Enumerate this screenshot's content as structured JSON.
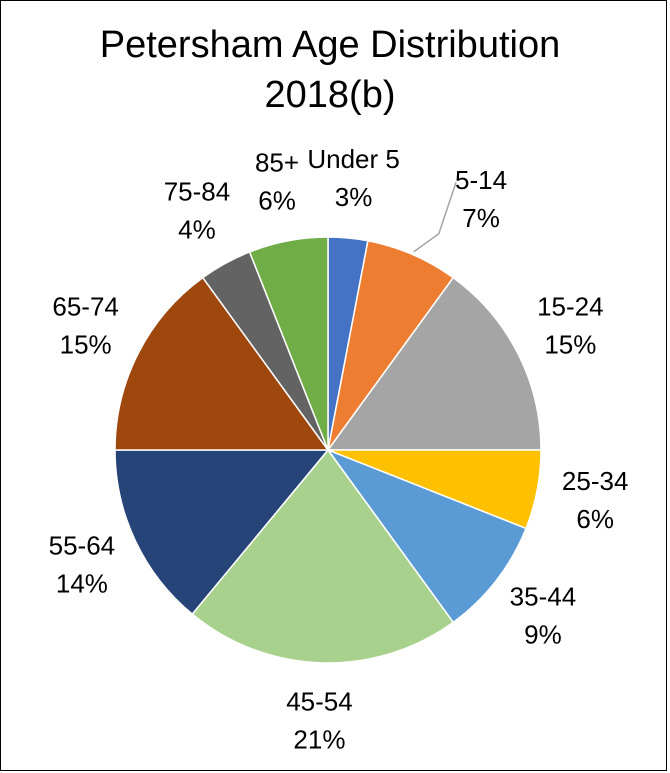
{
  "chart_data": {
    "type": "pie",
    "title": "Petersham Age Distribution 2018(b)",
    "categories": [
      "Under 5",
      "5-14",
      "15-24",
      "25-34",
      "35-44",
      "45-54",
      "55-64",
      "65-74",
      "75-84",
      "85+"
    ],
    "values": [
      3,
      7,
      15,
      6,
      9,
      21,
      14,
      15,
      4,
      6
    ],
    "value_labels": [
      "3%",
      "7%",
      "15%",
      "6%",
      "9%",
      "21%",
      "14%",
      "15%",
      "4%",
      "6%"
    ],
    "colors": [
      "#4472c4",
      "#ed7d31",
      "#a5a5a5",
      "#ffc000",
      "#5b9bd5",
      "#a9d18e",
      "#264478",
      "#9e480e",
      "#636363",
      "#70ad47"
    ]
  }
}
